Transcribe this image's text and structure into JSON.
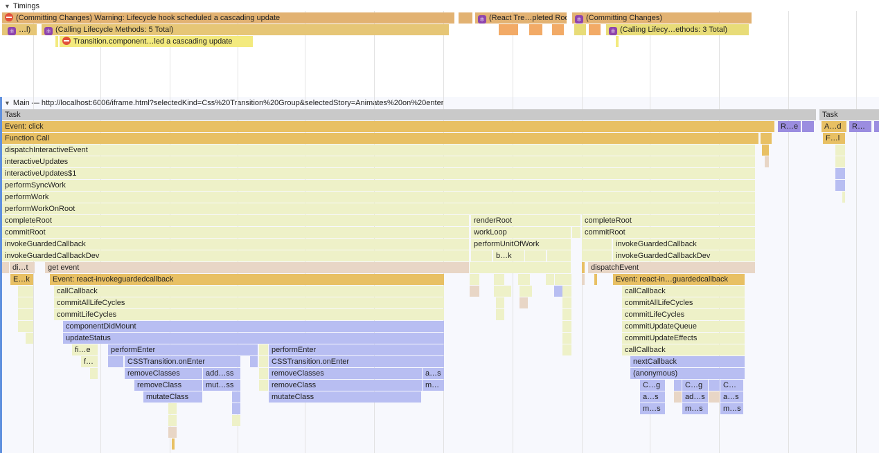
{
  "timings": {
    "title": "Timings",
    "committing_warning": "(Committing Changes) Warning: Lifecycle hook scheduled a cascading update",
    "react_tree": "(React Tre…pleted Root)",
    "committing": "(Committing Changes)",
    "short_l": "…l)",
    "calling_5": "(Calling Lifecycle Methods: 5 Total)",
    "calling_3": "(Calling Lifecy…ethods: 3 Total)",
    "transition_warning": "Transition.component…led a cascading update"
  },
  "main": {
    "title": "Main — http://localhost:6006/iframe.html?selectedKind=Css%20Transition%20Group&selectedStory=Animates%20on%20enter",
    "labels": {
      "task": "Task",
      "event_click": "Event: click",
      "r_e": "R…e",
      "a_d": "A…d",
      "r_": "R…",
      "function_call": "Function Call",
      "f_l": "F…l",
      "dispatchInteractiveEvent": "dispatchInteractiveEvent",
      "interactiveUpdates": "interactiveUpdates",
      "interactiveUpdates1": "interactiveUpdates$1",
      "performSyncWork": "performSyncWork",
      "performWork": "performWork",
      "performWorkOnRoot": "performWorkOnRoot",
      "completeRoot": "completeRoot",
      "renderRoot": "renderRoot",
      "commitRoot": "commitRoot",
      "workLoop": "workLoop",
      "invokeGuardedCallback": "invokeGuardedCallback",
      "performUnitOfWork": "performUnitOfWork",
      "invokeGuardedCallbackDev": "invokeGuardedCallbackDev",
      "b_k": "b…k",
      "di_t": "di…t",
      "get_event": "get event",
      "dispatchEvent": "dispatchEvent",
      "e_k": "E…k",
      "event_react": "Event: react-invokeguardedcallback",
      "event_react_short": "Event: react-in…guardedcallback",
      "callCallback": "callCallback",
      "commitAllLifeCycles": "commitAllLifeCycles",
      "commitLifeCycles": "commitLifeCycles",
      "componentDidMount": "componentDidMount",
      "commitUpdateQueue": "commitUpdateQueue",
      "updateStatus": "updateStatus",
      "commitUpdateEffects": "commitUpdateEffects",
      "fi_e": "fi…e",
      "performEnter": "performEnter",
      "f_": "f…",
      "cssOnEnter": "CSSTransition.onEnter",
      "nextCallback": "nextCallback",
      "removeClasses": "removeClasses",
      "add_ss": "add…ss",
      "a_s": "a…s",
      "anonymous": "(anonymous)",
      "removeClass": "removeClass",
      "mut_ss": "mut…ss",
      "m_": "m…",
      "c_g": "C…g",
      "c_": "C…",
      "mutateClass": "mutateClass",
      "ad_s": "ad…s",
      "m_s": "m…s"
    }
  },
  "colors": {
    "task": "#c9c9c9",
    "event": "#e8c064",
    "func": "#eef1c8",
    "purple": "#9b8de0",
    "lavender": "#b8bef2",
    "tan": "#e8d6c6",
    "timing_orange": "#e2b272",
    "timing_gold": "#e6c676",
    "timing_yellow": "#e8dc78",
    "bright_orange": "#f2aa66",
    "highlight_yellow": "#f3ea7e"
  }
}
